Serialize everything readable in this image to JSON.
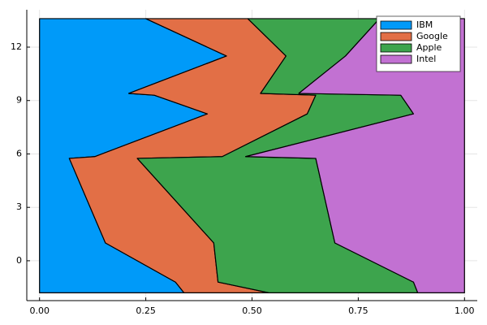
{
  "chart_data": {
    "type": "area",
    "orientation": "horizontal",
    "stacked": true,
    "x": [
      -1.8,
      -1.2,
      1.0,
      5.75,
      5.85,
      8.25,
      9.3,
      9.4,
      11.5,
      13.6
    ],
    "series": [
      {
        "name": "IBM",
        "color": "#009af9",
        "values": [
          0.34,
          0.32,
          0.155,
          0.07,
          0.13,
          0.395,
          0.27,
          0.21,
          0.44,
          0.25
        ]
      },
      {
        "name": "Google",
        "color": "#e26f46",
        "values": [
          0.2,
          0.1,
          0.255,
          0.16,
          0.3,
          0.235,
          0.38,
          0.31,
          0.14,
          0.24
        ]
      },
      {
        "name": "Apple",
        "color": "#3da44d",
        "values": [
          0.35,
          0.46,
          0.285,
          0.42,
          0.055,
          0.25,
          0.2,
          0.09,
          0.14,
          0.31
        ]
      },
      {
        "name": "Intel",
        "color": "#c271d2",
        "values": [
          0.11,
          0.12,
          0.305,
          0.35,
          0.515,
          0.12,
          0.15,
          0.39,
          0.28,
          0.2
        ]
      }
    ],
    "valuelim": [
      -0.03,
      1.03
    ],
    "valueticks": [
      {
        "value": 0,
        "label": "0.00"
      },
      {
        "value": 0.25,
        "label": "0.25"
      },
      {
        "value": 0.5,
        "label": "0.50"
      },
      {
        "value": 0.75,
        "label": "0.75"
      },
      {
        "value": 1,
        "label": "1.00"
      }
    ],
    "xlim": [
      -2.24,
      14.1
    ],
    "xticks": [
      0,
      3,
      6,
      9,
      12
    ],
    "grid": true,
    "legend": "top-right"
  }
}
